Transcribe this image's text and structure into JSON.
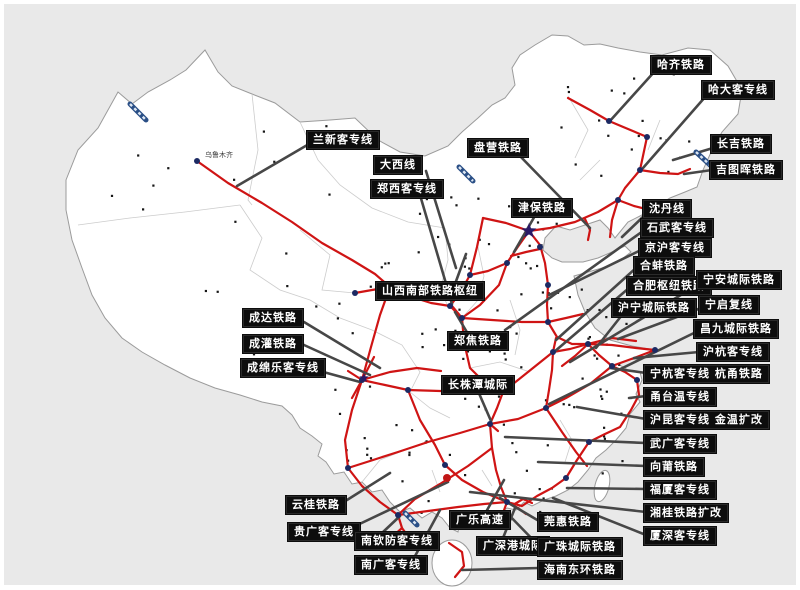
{
  "colors": {
    "canvas_bg": "#e9e9e9",
    "land": "#ffffff",
    "country_border": "#9b9b9b",
    "province_border": "#cccccc",
    "railway_red": "#cf1414",
    "label_bg": "#0d0d0d",
    "label_text": "#ffffff",
    "leader_line": "#474747",
    "city_dot": "#161616",
    "major_city": "#1c2a63",
    "capital_star": "#2a1a66",
    "construction_marker": "#2a4f86",
    "special_red_dot": "#c11616"
  },
  "map": {
    "city_label": "乌鲁木齐"
  },
  "labels": [
    {
      "text": "兰新客专线"
    },
    {
      "text": "哈齐铁路"
    },
    {
      "text": "哈大客专线"
    },
    {
      "text": "长吉铁路"
    },
    {
      "text": "吉图晖铁路"
    },
    {
      "text": "盘营铁路"
    },
    {
      "text": "大西线"
    },
    {
      "text": "郑西客专线"
    },
    {
      "text": "津保铁路"
    },
    {
      "text": "沈丹线"
    },
    {
      "text": "石武客专线"
    },
    {
      "text": "京沪客专线"
    },
    {
      "text": "合蚌铁路"
    },
    {
      "text": "合肥枢纽铁路"
    },
    {
      "text": "沪宁城际铁路"
    },
    {
      "text": "宁安城际铁路"
    },
    {
      "text": "宁启复线"
    },
    {
      "text": "昌九城际铁路"
    },
    {
      "text": "沪杭客专线"
    },
    {
      "text": "宁杭客专线 杭甬铁路"
    },
    {
      "text": "甬台温专线"
    },
    {
      "text": "沪昆客专线  金温扩改"
    },
    {
      "text": "武广客专线"
    },
    {
      "text": "向莆铁路"
    },
    {
      "text": "福厦客专线"
    },
    {
      "text": "湘桂铁路扩改"
    },
    {
      "text": "厦深客专线"
    },
    {
      "text": "山西南部铁路枢纽"
    },
    {
      "text": "成达铁路"
    },
    {
      "text": "成灌铁路"
    },
    {
      "text": "成绵乐客专线"
    },
    {
      "text": "郑焦铁路"
    },
    {
      "text": "长株潭城际"
    },
    {
      "text": "云桂铁路"
    },
    {
      "text": "贵广客专线"
    },
    {
      "text": "南钦防客专线"
    },
    {
      "text": "南广客专线"
    },
    {
      "text": "广乐高速"
    },
    {
      "text": "莞惠铁路"
    },
    {
      "text": "广深港城际"
    },
    {
      "text": "广珠城际铁路"
    },
    {
      "text": "海南东环铁路"
    }
  ]
}
